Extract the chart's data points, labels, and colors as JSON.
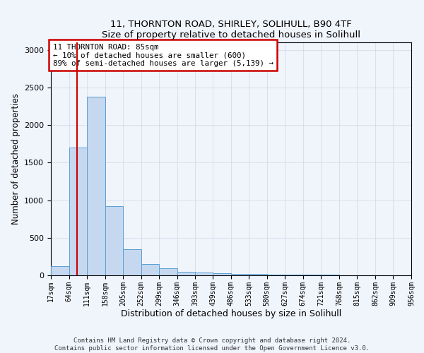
{
  "title1": "11, THORNTON ROAD, SHIRLEY, SOLIHULL, B90 4TF",
  "title2": "Size of property relative to detached houses in Solihull",
  "xlabel": "Distribution of detached houses by size in Solihull",
  "ylabel": "Number of detached properties",
  "bar_values": [
    120,
    1700,
    2380,
    920,
    350,
    155,
    90,
    50,
    40,
    30,
    20,
    15,
    10,
    8,
    5,
    5,
    4,
    3,
    3,
    3
  ],
  "bin_edges": [
    17,
    64,
    111,
    158,
    205,
    252,
    299,
    346,
    393,
    439,
    486,
    533,
    580,
    627,
    674,
    721,
    768,
    815,
    862,
    909,
    956
  ],
  "bar_color": "#c5d8f0",
  "bar_edge_color": "#5a9fd4",
  "vline_x": 85,
  "vline_color": "#cc0000",
  "annotation_text": "11 THORNTON ROAD: 85sqm\n← 10% of detached houses are smaller (600)\n89% of semi-detached houses are larger (5,139) →",
  "annotation_box_color": "white",
  "annotation_box_edge": "#cc0000",
  "ylim": [
    0,
    3100
  ],
  "yticks": [
    0,
    500,
    1000,
    1500,
    2000,
    2500,
    3000
  ],
  "tick_labels": [
    "17sqm",
    "64sqm",
    "111sqm",
    "158sqm",
    "205sqm",
    "252sqm",
    "299sqm",
    "346sqm",
    "393sqm",
    "439sqm",
    "486sqm",
    "533sqm",
    "580sqm",
    "627sqm",
    "674sqm",
    "721sqm",
    "768sqm",
    "815sqm",
    "862sqm",
    "909sqm",
    "956sqm"
  ],
  "footer": "Contains HM Land Registry data © Crown copyright and database right 2024.\nContains public sector information licensed under the Open Government Licence v3.0.",
  "bg_color": "#f0f4fb",
  "grid_color": "#d0d8e8"
}
